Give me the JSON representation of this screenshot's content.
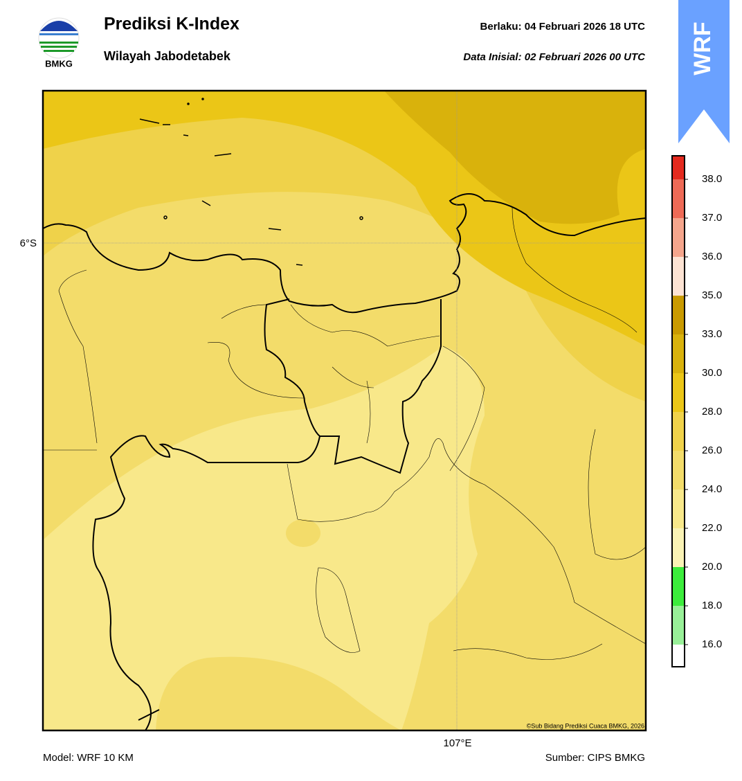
{
  "header": {
    "logo": "BMKG",
    "title": "Prediksi K-Index",
    "subtitle": "Wilayah Jabodetabek",
    "valid": "Berlaku:  04 Februari 2026 18 UTC",
    "init": "Data Inisial:  02 Februari 2026 00 UTC",
    "badge": "WRF"
  },
  "map": {
    "lat_label": "6°S",
    "lon_label": "107°E",
    "credit": "©Sub Bidang Prediksi Cuaca BMKG, 2026"
  },
  "colorbar": {
    "ticks": [
      {
        "value": 16,
        "label": "16.0"
      },
      {
        "value": 18,
        "label": "18.0"
      },
      {
        "value": 20,
        "label": "20.0"
      },
      {
        "value": 22,
        "label": "22.0"
      },
      {
        "value": 24,
        "label": "24.0"
      },
      {
        "value": 26,
        "label": "26.0"
      },
      {
        "value": 28,
        "label": "28.0"
      },
      {
        "value": 30,
        "label": "30.0"
      },
      {
        "value": 33,
        "label": "33.0"
      },
      {
        "value": 35,
        "label": "35.0"
      },
      {
        "value": 36,
        "label": "36.0"
      },
      {
        "value": 37,
        "label": "37.0"
      },
      {
        "value": 38,
        "label": "38.0"
      }
    ],
    "colors": [
      "#ffffff",
      "#98f098",
      "#3cec3c",
      "#faf3b5",
      "#f8e88a",
      "#f3dc6a",
      "#f0d24a",
      "#ebc617",
      "#d9b20c",
      "#c99a00",
      "#fde3d3",
      "#f5a58c",
      "#ee6a56",
      "#e42a1e"
    ]
  },
  "footer": {
    "model": "Model: WRF 10 KM",
    "source": "Sumber: CIPS BMKG"
  }
}
